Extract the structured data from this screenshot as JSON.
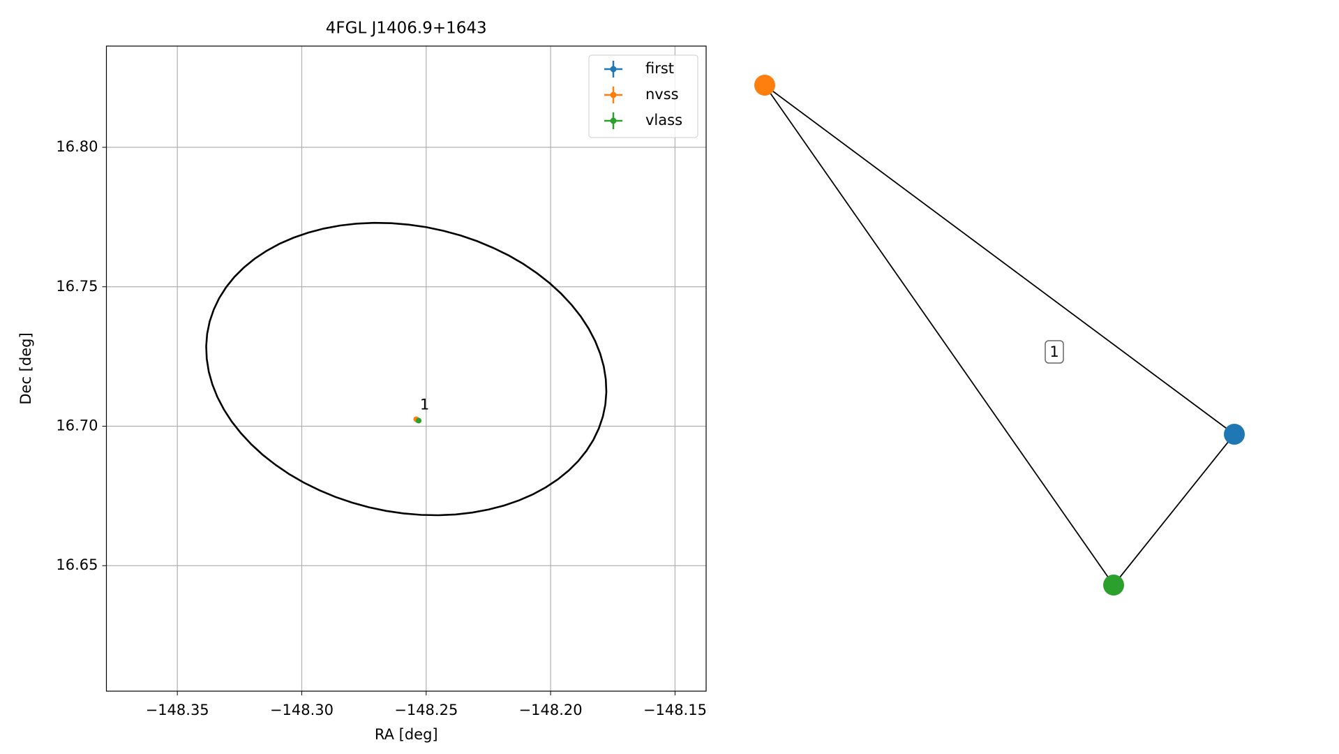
{
  "chart_data": [
    {
      "type": "scatter",
      "title": "4FGL J1406.9+1643",
      "x_label": "RA [deg]",
      "y_label": "Dec [deg]",
      "xlim": [
        -148.3785,
        -148.1375
      ],
      "ylim": [
        16.605,
        16.8363
      ],
      "xticks": [
        {
          "value": -148.35,
          "label": "−148.35"
        },
        {
          "value": -148.3,
          "label": "−148.30"
        },
        {
          "value": -148.25,
          "label": "−148.25"
        },
        {
          "value": -148.2,
          "label": "−148.20"
        },
        {
          "value": -148.15,
          "label": "−148.15"
        }
      ],
      "yticks": [
        {
          "value": 16.65,
          "label": "16.65"
        },
        {
          "value": 16.7,
          "label": "16.70"
        },
        {
          "value": 16.75,
          "label": "16.75"
        },
        {
          "value": 16.8,
          "label": "16.80"
        }
      ],
      "grid": true,
      "legend": "upper right",
      "series": [
        {
          "name": "first",
          "color": "#1f77b4",
          "x": [
            -148.2535
          ],
          "values": [
            16.7022
          ]
        },
        {
          "name": "nvss",
          "color": "#ff7f0e",
          "x": [
            -148.254
          ],
          "values": [
            16.7025
          ]
        },
        {
          "name": "vlass",
          "color": "#2ca02c",
          "x": [
            -148.253
          ],
          "values": [
            16.702
          ]
        }
      ],
      "annotation": {
        "text": "1",
        "x": -148.2525,
        "y": 16.7065
      },
      "ellipse": {
        "x": -148.258,
        "y": 16.7205,
        "semi_major": 0.081,
        "semi_minor": 0.0515,
        "angle": -9
      }
    },
    {
      "type": "graph",
      "nodes": [
        {
          "color": "#1f77b4"
        },
        {
          "color": "#ff7f0e"
        },
        {
          "color": "#2ca02c"
        }
      ],
      "edges": [
        [
          1,
          0
        ],
        [
          1,
          2
        ],
        [
          0,
          2
        ]
      ],
      "label": "1"
    }
  ]
}
